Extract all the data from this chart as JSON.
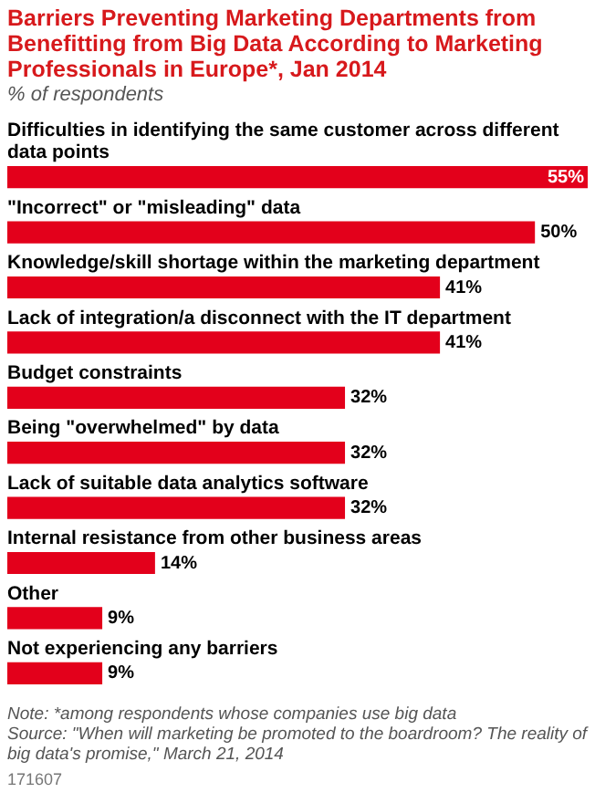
{
  "chart_data": {
    "type": "bar",
    "orientation": "horizontal",
    "title": "Barriers Preventing Marketing Departments from Benefitting from Big Data According to Marketing Professionals in Europe*, Jan 2014",
    "subtitle": "% of respondents",
    "categories": [
      "Difficulties in identifying the same customer across different data points",
      "\"Incorrect\" or \"misleading\" data",
      "Knowledge/skill shortage within the marketing department",
      "Lack of integration/a disconnect with the IT department",
      "Budget constraints",
      "Being \"overwhelmed\" by data",
      "Lack of suitable data analytics software",
      "Internal resistance from other business areas",
      "Other",
      "Not experiencing any barriers"
    ],
    "values": [
      55,
      50,
      41,
      41,
      32,
      32,
      32,
      14,
      9,
      9
    ],
    "value_labels": [
      "55%",
      "50%",
      "41%",
      "41%",
      "32%",
      "32%",
      "32%",
      "14%",
      "9%",
      "9%"
    ],
    "color": "#e3001b",
    "xlim": [
      0,
      55
    ],
    "tick_labels": false,
    "legend": false,
    "annotations": [
      "Note: *among respondents whose companies use big data",
      "Source: \"When will marketing be promoted to the boardroom? The reality of big data's promise,\" March 21, 2014",
      "171607"
    ]
  }
}
